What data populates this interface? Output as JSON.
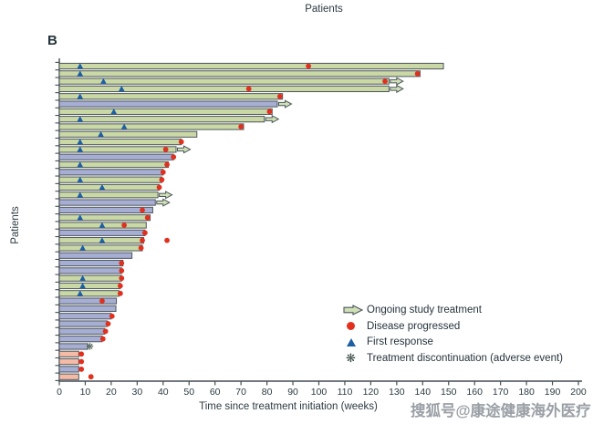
{
  "page": {
    "top_axis_label": "Patients",
    "panel_label": "B",
    "watermark": "搜狐号@康途健康海外医疗"
  },
  "colors": {
    "bar_green": "#c9d8a5",
    "bar_blue": "#a6aed3",
    "bar_salmon": "#f5bba6",
    "bar_stroke": "#4d565c",
    "progressed_dot": "#e2301f",
    "response_triangle": "#1d5fa5",
    "arrow_fill": "#cfe0b5",
    "axis": "#444c52",
    "text": "#2b3a42"
  },
  "chart_data": {
    "type": "bar",
    "variant": "swimmer-plot",
    "title": "",
    "xlabel": "Time since treatment initiation (weeks)",
    "ylabel": "Patients",
    "xlim": [
      0,
      200
    ],
    "xtick_step": 10,
    "grid": false,
    "legend_position": "inside-bottom-right",
    "legend": [
      {
        "symbol": "ongoing-arrow",
        "label": "Ongoing study treatment"
      },
      {
        "symbol": "red-circle",
        "label": "Disease progressed"
      },
      {
        "symbol": "blue-triangle",
        "label": "First response"
      },
      {
        "symbol": "asterisk",
        "label": "Treatment discontinuation (adverse event)"
      }
    ],
    "units": "weeks",
    "patients": [
      {
        "bar": 148,
        "color": "green",
        "first_response": 8,
        "progressed": 96
      },
      {
        "bar": 139,
        "color": "green",
        "first_response": 8,
        "progressed": 138
      },
      {
        "bar": 127,
        "color": "green",
        "first_response": 17,
        "progressed": 125.5,
        "ongoing": true
      },
      {
        "bar": 127,
        "color": "green",
        "first_response": 24,
        "progressed": 73,
        "ongoing": true
      },
      {
        "bar": 86,
        "color": "green",
        "first_response": 8,
        "progressed": 85
      },
      {
        "bar": 84,
        "color": "blue",
        "ongoing": true
      },
      {
        "bar": 82,
        "color": "green",
        "first_response": 21,
        "progressed": 81
      },
      {
        "bar": 79,
        "color": "green",
        "first_response": 8,
        "ongoing": true
      },
      {
        "bar": 71,
        "color": "green",
        "first_response": 25,
        "progressed": 70
      },
      {
        "bar": 53,
        "color": "green",
        "first_response": 16
      },
      {
        "bar": 47,
        "color": "green",
        "first_response": 8,
        "progressed": 47
      },
      {
        "bar": 45,
        "color": "green",
        "first_response": 8,
        "progressed": 41,
        "ongoing": true
      },
      {
        "bar": 44,
        "color": "blue",
        "progressed": 44
      },
      {
        "bar": 42,
        "color": "green",
        "first_response": 8,
        "progressed": 41.5
      },
      {
        "bar": 40,
        "color": "blue",
        "progressed": 40
      },
      {
        "bar": 39.5,
        "color": "green",
        "first_response": 8,
        "progressed": 39.5
      },
      {
        "bar": 38.5,
        "color": "green",
        "first_response": 16.5,
        "progressed": 38.5
      },
      {
        "bar": 38,
        "color": "green",
        "first_response": 8,
        "ongoing": true
      },
      {
        "bar": 37,
        "color": "blue",
        "ongoing": true
      },
      {
        "bar": 36,
        "color": "blue",
        "progressed": 32
      },
      {
        "bar": 35,
        "color": "green",
        "first_response": 8,
        "progressed": 34
      },
      {
        "bar": 33.5,
        "color": "green",
        "first_response": 16.5,
        "progressed": 25
      },
      {
        "bar": 33,
        "color": "blue",
        "progressed": 33
      },
      {
        "bar": 32.5,
        "color": "green",
        "first_response": 16.5,
        "progressed": 32,
        "late_progression": 41.5
      },
      {
        "bar": 32,
        "color": "green",
        "first_response": 9,
        "progressed": 31.5
      },
      {
        "bar": 28,
        "color": "blue"
      },
      {
        "bar": 24.5,
        "color": "blue",
        "progressed": 24
      },
      {
        "bar": 24,
        "color": "blue",
        "progressed": 24
      },
      {
        "bar": 24,
        "color": "green",
        "first_response": 9,
        "progressed": 24
      },
      {
        "bar": 23.5,
        "color": "green",
        "first_response": 9,
        "progressed": 23.5
      },
      {
        "bar": 23,
        "color": "green",
        "first_response": 8,
        "progressed": 23.5
      },
      {
        "bar": 22,
        "color": "blue",
        "progressed": 16.5
      },
      {
        "bar": 21.8,
        "color": "blue"
      },
      {
        "bar": 20,
        "color": "blue",
        "progressed": 20.3
      },
      {
        "bar": 18.5,
        "color": "blue",
        "progressed": 18.8
      },
      {
        "bar": 17.5,
        "color": "blue",
        "progressed": 17.8
      },
      {
        "bar": 16.5,
        "color": "blue",
        "progressed": 16.8
      },
      {
        "bar": 11,
        "color": "blue",
        "discontinued_ae": 11.8
      },
      {
        "bar": 7.5,
        "color": "salmon",
        "progressed": 8.5
      },
      {
        "bar": 7.5,
        "color": "salmon",
        "progressed": 8.5
      },
      {
        "bar": 7.5,
        "color": "blue",
        "progressed": 8.5
      },
      {
        "bar": 7.5,
        "color": "salmon",
        "late_progression": 12.2
      }
    ]
  }
}
